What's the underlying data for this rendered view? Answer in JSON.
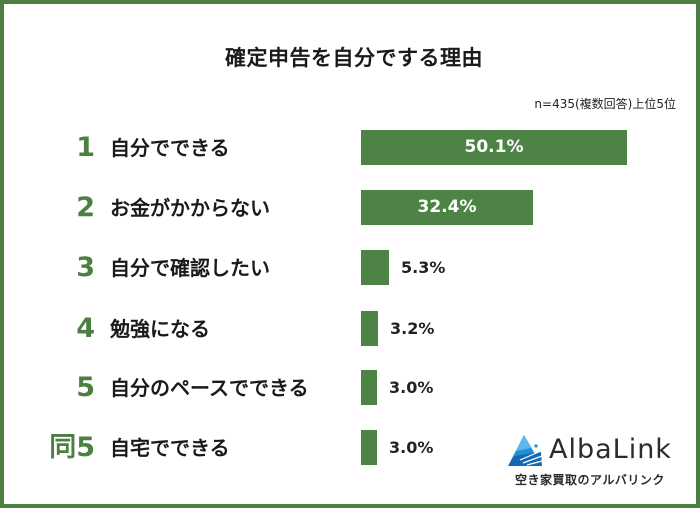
{
  "title": "確定申告を自分でする理由",
  "note": "n=435(複数回答)上位5位",
  "colors": {
    "bar": "#4d8445",
    "rank": "#4c7f41",
    "border": "#4c7f41"
  },
  "rows": [
    {
      "rank": "1",
      "label": "自分でできる",
      "value": "50.1%",
      "pct": 50.1
    },
    {
      "rank": "2",
      "label": "お金がかからない",
      "value": "32.4%",
      "pct": 32.4
    },
    {
      "rank": "3",
      "label": "自分で確認したい",
      "value": "5.3%",
      "pct": 5.3
    },
    {
      "rank": "4",
      "label": "勉強になる",
      "value": "3.2%",
      "pct": 3.2
    },
    {
      "rank": "5",
      "label": "自分のペースでできる",
      "value": "3.0%",
      "pct": 3.0
    },
    {
      "rank": "同5",
      "label": "自宅でできる",
      "value": "3.0%",
      "pct": 3.0
    }
  ],
  "logo": {
    "icon": "triangle-logo-icon",
    "name": "AlbaLink",
    "subtitle": "空き家買取のアルバリンク"
  },
  "chart_data": {
    "type": "bar",
    "orientation": "horizontal",
    "title": "確定申告を自分でする理由",
    "subtitle": "n=435(複数回答)上位5位",
    "categories": [
      "自分でできる",
      "お金がかからない",
      "自分で確認したい",
      "勉強になる",
      "自分のペースでできる",
      "自宅でできる"
    ],
    "ranks": [
      "1",
      "2",
      "3",
      "4",
      "5",
      "同5"
    ],
    "values": [
      50.1,
      32.4,
      5.3,
      3.2,
      3.0,
      3.0
    ],
    "unit": "%",
    "xlabel": "",
    "ylabel": "",
    "grid": false,
    "legend": "none"
  }
}
